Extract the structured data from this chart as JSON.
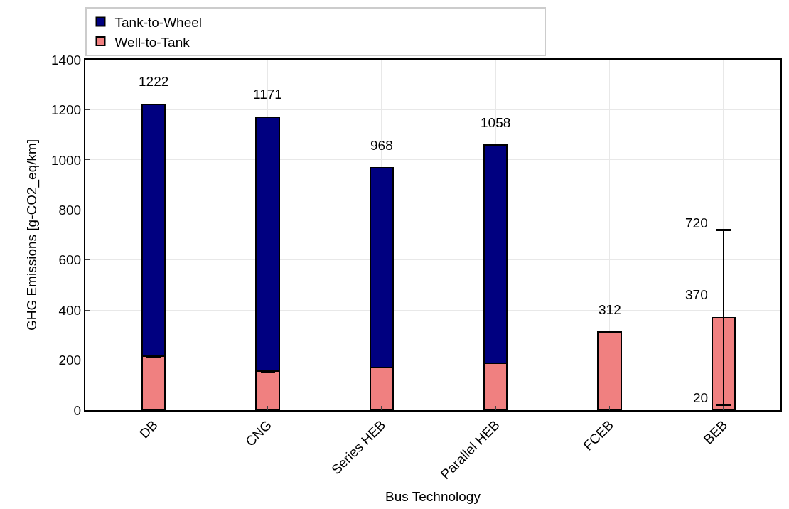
{
  "chart_data": {
    "type": "bar",
    "stacked": true,
    "xlabel": "Bus Technology",
    "ylabel": "GHG Emissions [g-CO2_eq/km]",
    "categories": [
      "DB",
      "CNG",
      "Series HEB",
      "Parallel HEB",
      "FCEB",
      "BEB"
    ],
    "series": [
      {
        "name": "Well-to-Tank",
        "color": "#f08080",
        "values": [
          215,
          155,
          170,
          188,
          312,
          370
        ],
        "errors": [
          null,
          null,
          null,
          null,
          null,
          [
            20,
            720
          ]
        ]
      },
      {
        "name": "Tank-to-Wheel",
        "color": "#000080",
        "values": [
          1007,
          1016,
          798,
          870,
          null,
          null
        ]
      }
    ],
    "totals": [
      "1222",
      "1171",
      "968",
      "1058",
      "312",
      "370"
    ],
    "annotations": [
      {
        "text": "720",
        "x": "BEB",
        "y": 720
      },
      {
        "text": "20",
        "x": "BEB",
        "y": 20
      }
    ],
    "ylim": [
      0,
      1400
    ],
    "yticks": [
      0,
      200,
      400,
      600,
      800,
      1000,
      1200,
      1400
    ],
    "grid": true,
    "legend": "top"
  }
}
